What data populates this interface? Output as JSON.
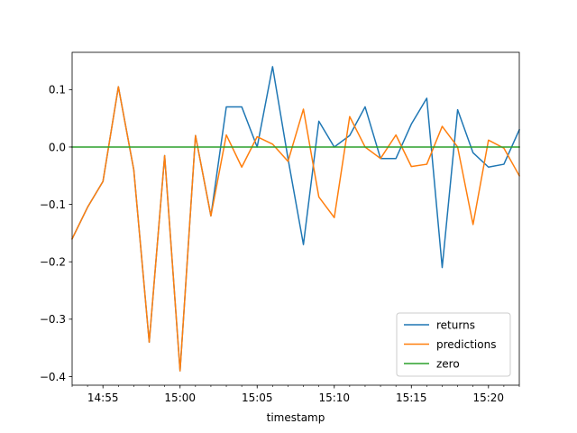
{
  "chart_data": {
    "type": "line",
    "title": "",
    "xlabel": "timestamp",
    "ylabel": "",
    "x": [
      "14:53",
      "14:54",
      "14:55",
      "14:56",
      "14:57",
      "14:58",
      "14:59",
      "15:00",
      "15:01",
      "15:02",
      "15:03",
      "15:04",
      "15:05",
      "15:06",
      "15:07",
      "15:08",
      "15:09",
      "15:10",
      "15:11",
      "15:12",
      "15:13",
      "15:14",
      "15:15",
      "15:16",
      "15:17",
      "15:18",
      "15:19",
      "15:20",
      "15:21",
      "15:22"
    ],
    "x_tick_labels": [
      "14:55",
      "15:00",
      "15:05",
      "15:10",
      "15:15",
      "15:20"
    ],
    "y_tick_labels": [
      "0.1",
      "0.0",
      "−0.1",
      "−0.2",
      "−0.3",
      "−0.4"
    ],
    "y_ticks": [
      0.1,
      0.0,
      -0.1,
      -0.2,
      -0.3,
      -0.4
    ],
    "ylim": [
      -0.415,
      0.165
    ],
    "grid": false,
    "legend_position": "lower-right",
    "series": [
      {
        "name": "returns",
        "color": "#1f77b4",
        "values": [
          -0.16,
          -0.105,
          -0.06,
          0.105,
          -0.04,
          -0.34,
          -0.015,
          -0.39,
          0.02,
          -0.12,
          0.07,
          0.07,
          0.0,
          0.14,
          -0.02,
          -0.17,
          0.045,
          0.0,
          0.02,
          0.07,
          -0.02,
          -0.02,
          0.04,
          0.085,
          -0.21,
          0.065,
          -0.01,
          -0.035,
          -0.03,
          0.03
        ]
      },
      {
        "name": "predictions",
        "color": "#ff7f0e",
        "values": [
          -0.16,
          -0.105,
          -0.06,
          0.105,
          -0.04,
          -0.34,
          -0.015,
          -0.39,
          0.02,
          -0.12,
          0.021,
          -0.035,
          0.018,
          0.005,
          -0.025,
          0.066,
          -0.087,
          -0.123,
          0.053,
          0.0,
          -0.02,
          0.021,
          -0.034,
          -0.03,
          0.036,
          0.0,
          -0.135,
          0.012,
          -0.002,
          -0.05
        ]
      },
      {
        "name": "zero",
        "color": "#2ca02c",
        "values": [
          0,
          0,
          0,
          0,
          0,
          0,
          0,
          0,
          0,
          0,
          0,
          0,
          0,
          0,
          0,
          0,
          0,
          0,
          0,
          0,
          0,
          0,
          0,
          0,
          0,
          0,
          0,
          0,
          0,
          0
        ]
      }
    ]
  }
}
